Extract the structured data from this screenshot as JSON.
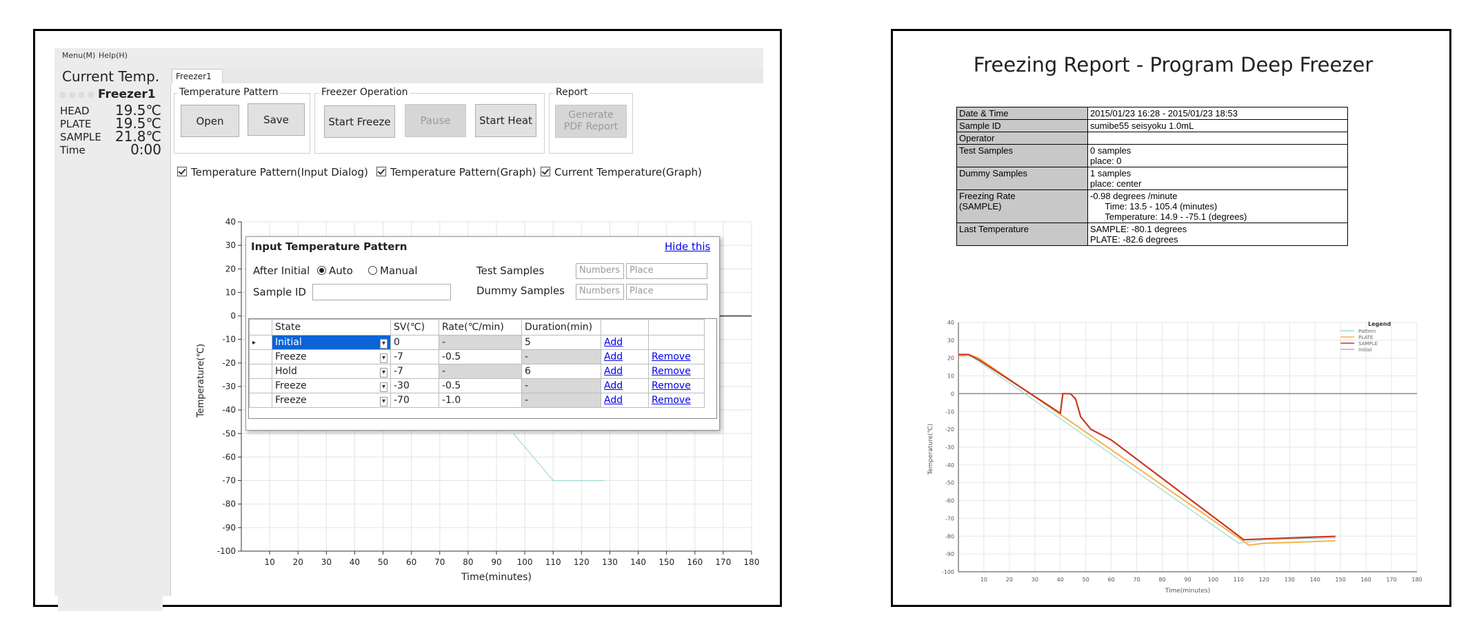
{
  "menu": {
    "items": [
      "Menu(M)",
      "Help(H)"
    ]
  },
  "current_temp": {
    "title": "Current Temp.",
    "freezer": "Freezer1",
    "rows": [
      {
        "label": "HEAD",
        "value": "19.5℃"
      },
      {
        "label": "PLATE",
        "value": "19.5℃"
      },
      {
        "label": "SAMPLE",
        "value": "21.8℃"
      },
      {
        "label": "Time",
        "value": "0:00"
      }
    ]
  },
  "tabs": [
    "Freezer1"
  ],
  "groups": {
    "pattern": {
      "label": "Temperature Pattern",
      "buttons": [
        "Open",
        "Save"
      ]
    },
    "operation": {
      "label": "Freezer Operation",
      "buttons": [
        "Start Freeze",
        "Pause",
        "Start Heat"
      ]
    },
    "report": {
      "label": "Report",
      "button": "Generate\nPDF Report"
    }
  },
  "checkboxes": [
    "Temperature Pattern(Input Dialog)",
    "Temperature Pattern(Graph)",
    "Current Temperature(Graph)"
  ],
  "graph": {
    "ylabel": "Temperature(℃)",
    "xlabel": "Time(minutes)",
    "yticks": [
      "40",
      "30",
      "20",
      "10",
      "0",
      "-10",
      "-20",
      "-30",
      "-40",
      "-50",
      "-60",
      "-70",
      "-80",
      "-90",
      "-100"
    ],
    "xticks": [
      "10",
      "20",
      "30",
      "40",
      "50",
      "60",
      "70",
      "80",
      "90",
      "100",
      "110",
      "120",
      "130",
      "140",
      "150",
      "160",
      "170",
      "180"
    ]
  },
  "dialog": {
    "title": "Input Temperature Pattern",
    "hide": "Hide this",
    "after_initial": "After Initial",
    "auto": "Auto",
    "manual": "Manual",
    "sample_id": "Sample ID",
    "test_samples": "Test Samples",
    "dummy_samples": "Dummy Samples",
    "numbers_ph": "Numbers",
    "place_ph": "Place",
    "columns": [
      "State",
      "SV(℃)",
      "Rate(℃/min)",
      "Duration(min)"
    ],
    "rows": [
      {
        "state": "Initial",
        "sv": "0",
        "rate": "-",
        "duration": "5",
        "add": "Add",
        "remove": ""
      },
      {
        "state": "Freeze",
        "sv": "-7",
        "rate": "-0.5",
        "duration": "-",
        "add": "Add",
        "remove": "Remove"
      },
      {
        "state": "Hold",
        "sv": "-7",
        "rate": "-",
        "duration": "6",
        "add": "Add",
        "remove": "Remove"
      },
      {
        "state": "Freeze",
        "sv": "-30",
        "rate": "-0.5",
        "duration": "-",
        "add": "Add",
        "remove": "Remove"
      },
      {
        "state": "Freeze",
        "sv": "-70",
        "rate": "-1.0",
        "duration": "-",
        "add": "Add",
        "remove": "Remove"
      }
    ]
  },
  "report": {
    "title": "Freezing Report - Program Deep Freezer",
    "rows": [
      {
        "key": "Date & Time",
        "val": "2015/01/23 16:28 - 2015/01/23 18:53"
      },
      {
        "key": "Sample ID",
        "val": "sumibe55 seisyoku 1.0mL"
      },
      {
        "key": "Operator",
        "val": ""
      },
      {
        "key": "Test Samples",
        "val": "0 samples\nplace: 0"
      },
      {
        "key": "Dummy Samples",
        "val": "1 samples\nplace: center"
      },
      {
        "key": "Freezing Rate\n(SAMPLE)",
        "val": "-0.98 degrees /minute\n      Time: 13.5 - 105.4 (minutes)\n      Temperature: 14.9 - -75.1 (degrees)"
      },
      {
        "key": "Last Temperature",
        "val": "SAMPLE: -80.1 degrees\nPLATE: -82.6 degrees"
      }
    ],
    "chart": {
      "ylabel": "Temperature(℃)",
      "xlabel": "Time(minutes)",
      "legend_title": "Legend",
      "legend": [
        "Pattern",
        "PLATE",
        "SAMPLE",
        "Initial"
      ],
      "yticks": [
        "40",
        "30",
        "20",
        "10",
        "0",
        "-10",
        "-20",
        "-30",
        "-40",
        "-50",
        "-60",
        "-70",
        "-80",
        "-90",
        "-100"
      ],
      "xticks": [
        "10",
        "20",
        "30",
        "40",
        "50",
        "60",
        "70",
        "80",
        "90",
        "100",
        "110",
        "120",
        "130",
        "140",
        "150",
        "160",
        "170",
        "180"
      ]
    }
  }
}
